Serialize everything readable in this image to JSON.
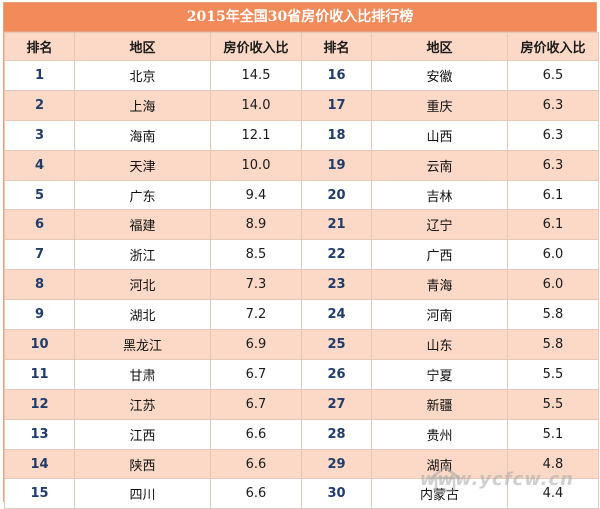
{
  "title": "2015年全国30省房价收入比排行榜",
  "headers": [
    "排名",
    "地区",
    "房价收入比",
    "排名",
    "地区",
    "房价收入比"
  ],
  "rows": [
    {
      "left": {
        "rank": "1",
        "region": "北京",
        "ratio": "14.5"
      },
      "right": {
        "rank": "16",
        "region": "安徽",
        "ratio": "6.5"
      }
    },
    {
      "left": {
        "rank": "2",
        "region": "上海",
        "ratio": "14.0"
      },
      "right": {
        "rank": "17",
        "region": "重庆",
        "ratio": "6.3"
      }
    },
    {
      "left": {
        "rank": "3",
        "region": "海南",
        "ratio": "12.1"
      },
      "right": {
        "rank": "18",
        "region": "山西",
        "ratio": "6.3"
      }
    },
    {
      "left": {
        "rank": "4",
        "region": "天津",
        "ratio": "10.0"
      },
      "right": {
        "rank": "19",
        "region": "云南",
        "ratio": "6.3"
      }
    },
    {
      "left": {
        "rank": "5",
        "region": "广东",
        "ratio": "9.4"
      },
      "right": {
        "rank": "20",
        "region": "吉林",
        "ratio": "6.1"
      }
    },
    {
      "left": {
        "rank": "6",
        "region": "福建",
        "ratio": "8.9"
      },
      "right": {
        "rank": "21",
        "region": "辽宁",
        "ratio": "6.1"
      }
    },
    {
      "left": {
        "rank": "7",
        "region": "浙江",
        "ratio": "8.5"
      },
      "right": {
        "rank": "22",
        "region": "广西",
        "ratio": "6.0"
      }
    },
    {
      "left": {
        "rank": "8",
        "region": "河北",
        "ratio": "7.3"
      },
      "right": {
        "rank": "23",
        "region": "青海",
        "ratio": "6.0"
      }
    },
    {
      "left": {
        "rank": "9",
        "region": "湖北",
        "ratio": "7.2"
      },
      "right": {
        "rank": "24",
        "region": "河南",
        "ratio": "5.8"
      }
    },
    {
      "left": {
        "rank": "10",
        "region": "黑龙江",
        "ratio": "6.9"
      },
      "right": {
        "rank": "25",
        "region": "山东",
        "ratio": "5.8"
      }
    },
    {
      "left": {
        "rank": "11",
        "region": "甘肃",
        "ratio": "6.7"
      },
      "right": {
        "rank": "26",
        "region": "宁夏",
        "ratio": "5.5"
      }
    },
    {
      "left": {
        "rank": "12",
        "region": "江苏",
        "ratio": "6.7"
      },
      "right": {
        "rank": "27",
        "region": "新疆",
        "ratio": "5.5"
      }
    },
    {
      "left": {
        "rank": "13",
        "region": "江西",
        "ratio": "6.6"
      },
      "right": {
        "rank": "28",
        "region": "贵州",
        "ratio": "5.1"
      }
    },
    {
      "left": {
        "rank": "14",
        "region": "陕西",
        "ratio": "6.6"
      },
      "right": {
        "rank": "29",
        "region": "湖南",
        "ratio": "4.8"
      }
    },
    {
      "left": {
        "rank": "15",
        "region": "四川",
        "ratio": "6.6"
      },
      "right": {
        "rank": "30",
        "region": "内蒙古",
        "ratio": "4.4"
      }
    }
  ],
  "watermark": "www.ycfcw.cn",
  "colors": {
    "title_bg": "#f28a5a",
    "stripe": "#fbd9c6",
    "rank_text": "#1f3c6b"
  }
}
